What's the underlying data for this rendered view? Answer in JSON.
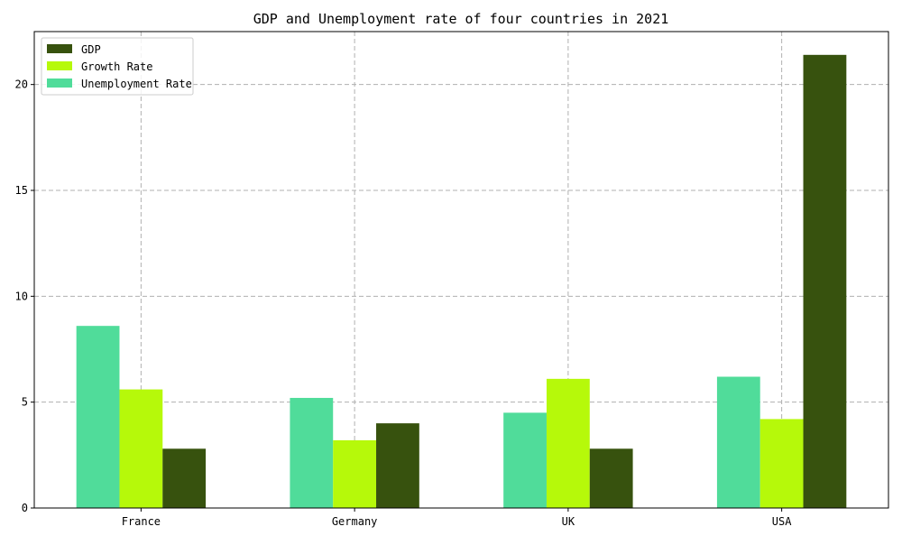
{
  "chart_data": {
    "type": "bar",
    "title": "GDP and Unemployment rate of four countries in 2021",
    "xlabel": "",
    "ylabel": "",
    "categories": [
      "France",
      "Germany",
      "UK",
      "USA"
    ],
    "series": [
      {
        "name": "Unemployment Rate",
        "values": [
          8.6,
          5.2,
          4.5,
          6.2
        ],
        "color": "#50dc9a"
      },
      {
        "name": "Growth Rate",
        "values": [
          5.6,
          3.2,
          6.1,
          4.2
        ],
        "color": "#b6f90a"
      },
      {
        "name": "GDP",
        "values": [
          2.8,
          4.0,
          2.8,
          21.4
        ],
        "color": "#37520e"
      }
    ],
    "legend_order": [
      "GDP",
      "Growth Rate",
      "Unemployment Rate"
    ],
    "legend_position": "top-left",
    "yticks": [
      0,
      5,
      10,
      15,
      20
    ],
    "ylim": [
      0,
      22.5
    ],
    "grid": true
  }
}
